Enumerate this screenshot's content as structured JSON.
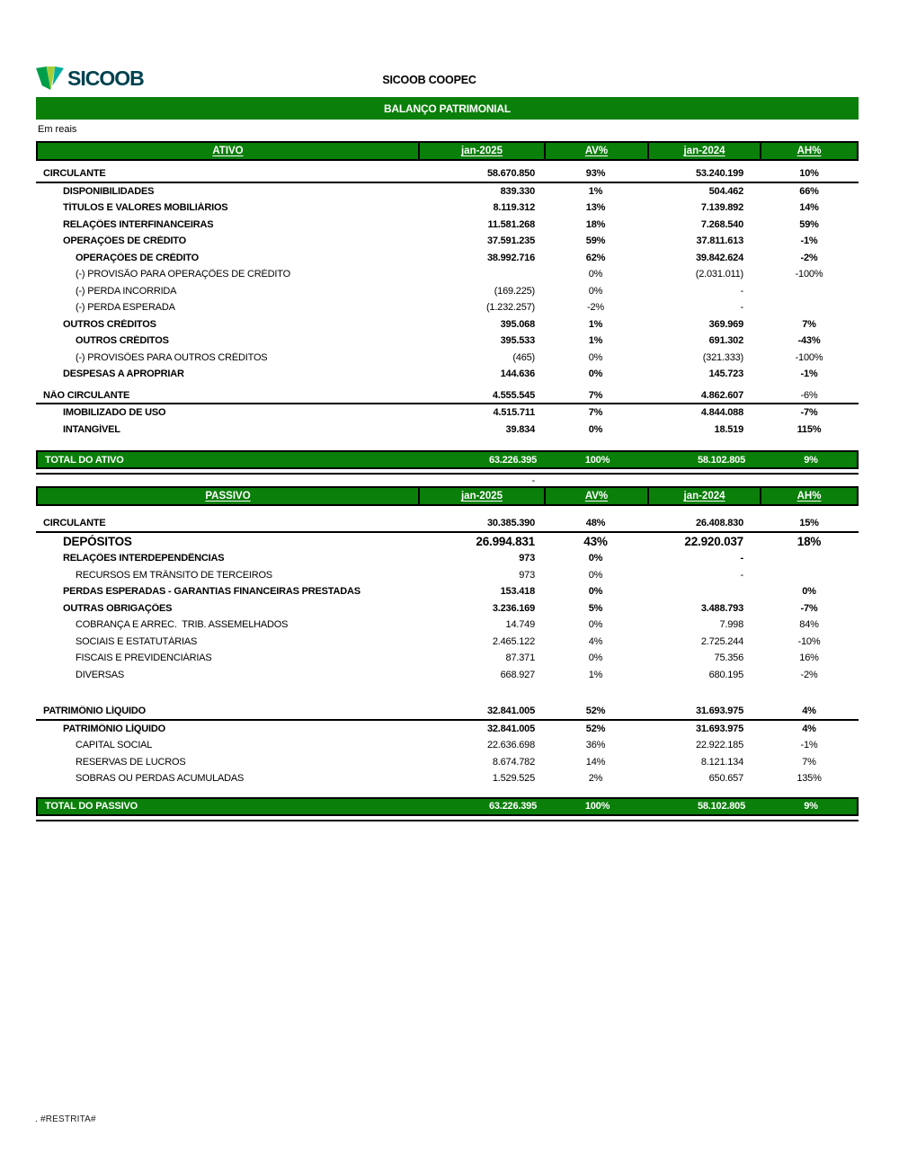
{
  "colors": {
    "green": "#0A7F0A",
    "brand_dark": "#00424F",
    "brand_teal": "#00AE9D",
    "brand_green": "#009E49",
    "brand_light_green": "#A6CE39"
  },
  "logo": {
    "brand": "SICOOB"
  },
  "header": {
    "company": "SICOOB COOPEC",
    "banner": "BALANÇO PATRIMONIAL",
    "currency_note": "Em reais"
  },
  "columns": {
    "ativo": "ATIVO",
    "passivo": "PASSIVO",
    "jan2025": "jan-2025",
    "av": "AV%",
    "jan2024": "jan-2024",
    "ah": "AH%"
  },
  "ativo_rows": [
    {
      "style": "spacer",
      "h": 6
    },
    {
      "style": "section",
      "indent": 0,
      "label": "CIRCULANTE",
      "v1": "58.670.850",
      "av": "93%",
      "v2": "53.240.199",
      "ah": "10%"
    },
    {
      "style": "bold",
      "indent": 1,
      "label": "DISPONIBILIDADES",
      "v1": "839.330",
      "av": "1%",
      "v2": "504.462",
      "ah": "66%"
    },
    {
      "style": "bold",
      "indent": 1,
      "label": "TÍTULOS E VALORES MOBILIÁRIOS",
      "v1": "8.119.312",
      "av": "13%",
      "v2": "7.139.892",
      "ah": "14%"
    },
    {
      "style": "bold",
      "indent": 1,
      "label": "RELAÇÕES INTERFINANCEIRAS",
      "v1": "11.581.268",
      "av": "18%",
      "v2": "7.268.540",
      "ah": "59%"
    },
    {
      "style": "bold",
      "indent": 1,
      "label": "OPERAÇÕES DE CRÉDITO",
      "v1": "37.591.235",
      "av": "59%",
      "v2": "37.811.613",
      "ah": "-1%"
    },
    {
      "style": "bold",
      "indent": 2,
      "label": "OPERAÇÕES DE CRÉDITO",
      "v1": "38.992.716",
      "av": "62%",
      "v2": "39.842.624",
      "ah": "-2%"
    },
    {
      "style": "regular",
      "indent": 2,
      "label": "(-) PROVISÃO PARA OPERAÇÕES DE CRÉDITO",
      "v1": "",
      "av": "0%",
      "v2": "(2.031.011)",
      "ah": "-100%"
    },
    {
      "style": "regular",
      "indent": 2,
      "label": "(-) PERDA INCORRIDA",
      "v1": "(169.225)",
      "av": "0%",
      "v2": "-",
      "ah": ""
    },
    {
      "style": "regular",
      "indent": 2,
      "label": "(-) PERDA ESPERADA",
      "v1": "(1.232.257)",
      "av": "-2%",
      "v2": "-",
      "ah": ""
    },
    {
      "style": "bold",
      "indent": 1,
      "label": "OUTROS CRÉDITOS",
      "v1": "395.068",
      "av": "1%",
      "v2": "369.969",
      "ah": "7%"
    },
    {
      "style": "bold",
      "indent": 2,
      "label": "OUTROS CRÉDITOS",
      "v1": "395.533",
      "av": "1%",
      "v2": "691.302",
      "ah": "-43%"
    },
    {
      "style": "regular",
      "indent": 2,
      "label": "(-) PROVISÕES PARA OUTROS CRÉDITOS",
      "v1": "(465)",
      "av": "0%",
      "v2": "(321.333)",
      "ah": "-100%"
    },
    {
      "style": "bold",
      "indent": 1,
      "label": "DESPESAS A APROPRIAR",
      "v1": "144.636",
      "av": "0%",
      "v2": "145.723",
      "ah": "-1%"
    },
    {
      "style": "spacer",
      "h": 6
    },
    {
      "style": "section",
      "indent": 0,
      "label": "NÃO CIRCULANTE",
      "v1": "4.555.545",
      "av": "7%",
      "v2": "4.862.607",
      "ah": "-6%",
      "ah_reg": true
    },
    {
      "style": "bold",
      "indent": 1,
      "label": "IMOBILIZADO DE USO",
      "v1": "4.515.711",
      "av": "7%",
      "v2": "4.844.088",
      "ah": "-7%"
    },
    {
      "style": "bold",
      "indent": 1,
      "label": "INTANGÍVEL",
      "v1": "39.834",
      "av": "0%",
      "v2": "18.519",
      "ah": "115%"
    },
    {
      "style": "spacer",
      "h": 14
    },
    {
      "style": "total",
      "indent": 0,
      "label": "TOTAL DO ATIVO",
      "v1": "63.226.395",
      "av": "100%",
      "v2": "58.102.805",
      "ah": "9%"
    },
    {
      "style": "dash",
      "indent": 0,
      "label": "",
      "v1": "-",
      "av": "",
      "v2": "",
      "ah": ""
    }
  ],
  "passivo_rows": [
    {
      "style": "spacer",
      "h": 11
    },
    {
      "style": "section",
      "indent": 0,
      "label": "CIRCULANTE",
      "v1": "30.385.390",
      "av": "48%",
      "v2": "26.408.830",
      "ah": "15%"
    },
    {
      "style": "bold",
      "indent": 1,
      "big": true,
      "label": "DEPÓSITOS",
      "v1": "26.994.831",
      "av": "43%",
      "v2": "22.920.037",
      "ah": "18%"
    },
    {
      "style": "bold",
      "indent": 1,
      "label": "RELAÇÕES INTERDEPENDÊNCIAS",
      "v1": "973",
      "av": "0%",
      "v2": "-",
      "ah": ""
    },
    {
      "style": "regular",
      "indent": 2,
      "label": "RECURSOS EM TRÂNSITO DE TERCEIROS",
      "v1": "973",
      "av": "0%",
      "v2": "-",
      "ah": ""
    },
    {
      "style": "bold",
      "indent": 1,
      "label": "PERDAS ESPERADAS - GARANTIAS FINANCEIRAS PRESTADAS",
      "v1": "153.418",
      "av": "0%",
      "v2": "",
      "ah": "0%"
    },
    {
      "style": "bold",
      "indent": 1,
      "label": "OUTRAS OBRIGAÇÕES",
      "v1": "3.236.169",
      "av": "5%",
      "v2": "3.488.793",
      "ah": "-7%"
    },
    {
      "style": "regular",
      "indent": 2,
      "label": "COBRANÇA E ARREC.  TRIB. ASSEMELHADOS",
      "v1": "14.749",
      "av": "0%",
      "v2": "7.998",
      "ah": "84%"
    },
    {
      "style": "regular",
      "indent": 2,
      "label": "SOCIAIS E ESTATUTÁRIAS",
      "v1": "2.465.122",
      "av": "4%",
      "v2": "2.725.244",
      "ah": "-10%"
    },
    {
      "style": "regular",
      "indent": 2,
      "label": "FISCAIS E PREVIDENCIÁRIAS",
      "v1": "87.371",
      "av": "0%",
      "v2": "75.356",
      "ah": "16%"
    },
    {
      "style": "regular",
      "indent": 2,
      "label": "DIVERSAS",
      "v1": "668.927",
      "av": "1%",
      "v2": "680.195",
      "ah": "-2%"
    },
    {
      "style": "spacer",
      "h": 23
    },
    {
      "style": "section",
      "indent": 0,
      "label": "PATRIMÔNIO LÍQUIDO",
      "v1": "32.841.005",
      "av": "52%",
      "v2": "31.693.975",
      "ah": "4%"
    },
    {
      "style": "bold",
      "indent": 1,
      "label": "PATRIMÔNIO LÍQUIDO",
      "v1": "32.841.005",
      "av": "52%",
      "v2": "31.693.975",
      "ah": "4%"
    },
    {
      "style": "regular",
      "indent": 2,
      "label": "CAPITAL SOCIAL",
      "v1": "22.636.698",
      "av": "36%",
      "v2": "22.922.185",
      "ah": "-1%"
    },
    {
      "style": "regular",
      "indent": 2,
      "label": "RESERVAS DE LUCROS",
      "v1": "8.674.782",
      "av": "14%",
      "v2": "8.121.134",
      "ah": "7%"
    },
    {
      "style": "regular",
      "indent": 2,
      "label": "SOBRAS OU PERDAS ACUMULADAS",
      "v1": "1.529.525",
      "av": "2%",
      "v2": "650.657",
      "ah": "135%"
    },
    {
      "style": "spacer",
      "h": 11
    },
    {
      "style": "total",
      "indent": 0,
      "label": "TOTAL DO PASSIVO",
      "v1": "63.226.395",
      "av": "100%",
      "v2": "58.102.805",
      "ah": "9%"
    }
  ],
  "footer": {
    "restricted": ". #RESTRITA#"
  }
}
